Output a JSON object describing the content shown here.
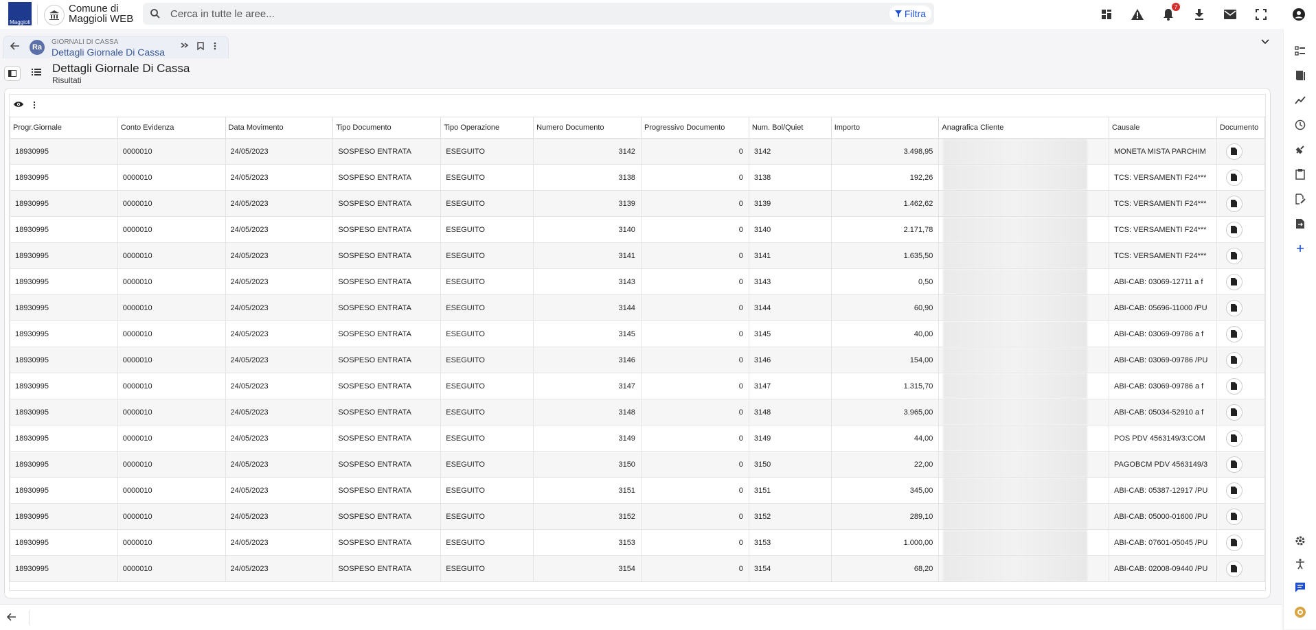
{
  "app": {
    "logo_text": "Maggioli",
    "title_line1": "Comune di",
    "title_line2": "Maggioli WEB"
  },
  "search": {
    "placeholder": "Cerca in tutte le aree...",
    "filter_label": "Filtra"
  },
  "notifications": {
    "count": "7"
  },
  "tab": {
    "section": "GIORNALI DI CASSA",
    "title": "Dettagli Giornale Di Cassa",
    "logo_text": "Ra"
  },
  "page": {
    "title": "Dettagli Giornale Di Cassa",
    "subtitle": "Risultati"
  },
  "table": {
    "columns": [
      "Progr.Giornale",
      "Conto Evidenza",
      "Data Movimento",
      "Tipo Documento",
      "Tipo Operazione",
      "Numero Documento",
      "Progressivo Documento",
      "Num. Bol/Quiet",
      "Importo",
      "Anagrafica Cliente",
      "Causale",
      "Documento"
    ],
    "rows": [
      [
        "18930995",
        "0000010",
        "24/05/2023",
        "SOSPESO ENTRATA",
        "ESEGUITO",
        "3142",
        "0",
        "3142",
        "3.498,95",
        "",
        "MONETA MISTA PARCHIM"
      ],
      [
        "18930995",
        "0000010",
        "24/05/2023",
        "SOSPESO ENTRATA",
        "ESEGUITO",
        "3138",
        "0",
        "3138",
        "192,26",
        "",
        "TCS: VERSAMENTI F24***"
      ],
      [
        "18930995",
        "0000010",
        "24/05/2023",
        "SOSPESO ENTRATA",
        "ESEGUITO",
        "3139",
        "0",
        "3139",
        "1.462,62",
        "",
        "TCS: VERSAMENTI F24***"
      ],
      [
        "18930995",
        "0000010",
        "24/05/2023",
        "SOSPESO ENTRATA",
        "ESEGUITO",
        "3140",
        "0",
        "3140",
        "2.171,78",
        "",
        "TCS: VERSAMENTI F24***"
      ],
      [
        "18930995",
        "0000010",
        "24/05/2023",
        "SOSPESO ENTRATA",
        "ESEGUITO",
        "3141",
        "0",
        "3141",
        "1.635,50",
        "",
        "TCS: VERSAMENTI F24***"
      ],
      [
        "18930995",
        "0000010",
        "24/05/2023",
        "SOSPESO ENTRATA",
        "ESEGUITO",
        "3143",
        "0",
        "3143",
        "0,50",
        "",
        "ABI-CAB: 03069-12711 a f"
      ],
      [
        "18930995",
        "0000010",
        "24/05/2023",
        "SOSPESO ENTRATA",
        "ESEGUITO",
        "3144",
        "0",
        "3144",
        "60,90",
        "",
        "ABI-CAB: 05696-11000 /PU"
      ],
      [
        "18930995",
        "0000010",
        "24/05/2023",
        "SOSPESO ENTRATA",
        "ESEGUITO",
        "3145",
        "0",
        "3145",
        "40,00",
        "",
        "ABI-CAB: 03069-09786 a f"
      ],
      [
        "18930995",
        "0000010",
        "24/05/2023",
        "SOSPESO ENTRATA",
        "ESEGUITO",
        "3146",
        "0",
        "3146",
        "154,00",
        "",
        "ABI-CAB: 03069-09786 /PU"
      ],
      [
        "18930995",
        "0000010",
        "24/05/2023",
        "SOSPESO ENTRATA",
        "ESEGUITO",
        "3147",
        "0",
        "3147",
        "1.315,70",
        "",
        "ABI-CAB: 03069-09786 a f"
      ],
      [
        "18930995",
        "0000010",
        "24/05/2023",
        "SOSPESO ENTRATA",
        "ESEGUITO",
        "3148",
        "0",
        "3148",
        "3.965,00",
        "",
        "ABI-CAB: 05034-52910 a f"
      ],
      [
        "18930995",
        "0000010",
        "24/05/2023",
        "SOSPESO ENTRATA",
        "ESEGUITO",
        "3149",
        "0",
        "3149",
        "44,00",
        "",
        "POS PDV 4563149/3:COM"
      ],
      [
        "18930995",
        "0000010",
        "24/05/2023",
        "SOSPESO ENTRATA",
        "ESEGUITO",
        "3150",
        "0",
        "3150",
        "22,00",
        "",
        "PAGOBCM PDV 4563149/3"
      ],
      [
        "18930995",
        "0000010",
        "24/05/2023",
        "SOSPESO ENTRATA",
        "ESEGUITO",
        "3151",
        "0",
        "3151",
        "345,00",
        "",
        "ABI-CAB: 05387-12917 /PU"
      ],
      [
        "18930995",
        "0000010",
        "24/05/2023",
        "SOSPESO ENTRATA",
        "ESEGUITO",
        "3152",
        "0",
        "3152",
        "289,10",
        "",
        "ABI-CAB: 05000-01600 /PU"
      ],
      [
        "18930995",
        "0000010",
        "24/05/2023",
        "SOSPESO ENTRATA",
        "ESEGUITO",
        "3153",
        "0",
        "3153",
        "1.000,00",
        "",
        "ABI-CAB: 07601-05045 /PU"
      ],
      [
        "18930995",
        "0000010",
        "24/05/2023",
        "SOSPESO ENTRATA",
        "ESEGUITO",
        "3154",
        "0",
        "3154",
        "68,20",
        "",
        "ABI-CAB: 02008-09440 /PU"
      ]
    ]
  },
  "icons": {
    "top": [
      "apps-icon",
      "warning-icon",
      "bell-icon",
      "download-icon",
      "mail-icon",
      "fullscreen-icon",
      "account-icon"
    ],
    "right": [
      "checklist-icon",
      "book-icon",
      "trend-icon",
      "history-icon",
      "plugin-icon",
      "clipboard-icon",
      "edit-doc-icon",
      "doc-exchange-icon",
      "plus-icon",
      "settings-icon",
      "accessibility-icon",
      "chat-icon",
      "help-circle-icon"
    ]
  },
  "colors": {
    "accent": "#1d4ed8",
    "tab_title": "#3b5998",
    "badge": "#d32f2f",
    "logo_bg": "#1e3a8f"
  }
}
